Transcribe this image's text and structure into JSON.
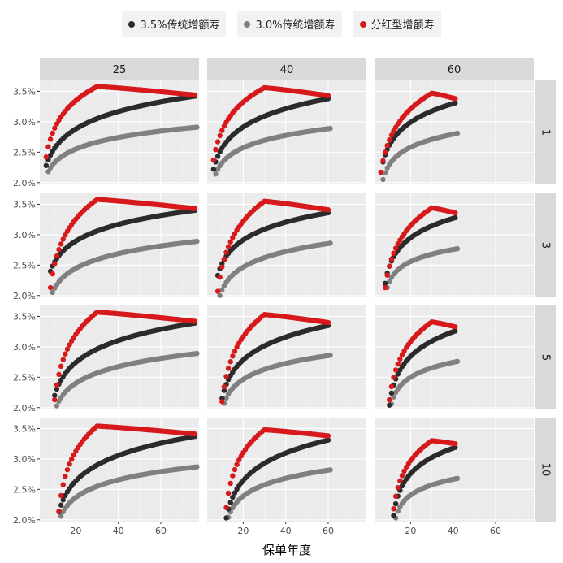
{
  "chart_data": {
    "type": "scatter",
    "title": "",
    "xlabel": "保单年度",
    "ylabel": "",
    "legend": {
      "placement": "top",
      "items": [
        {
          "name": "3.5%传统增额寿",
          "color": "#2b2b2b"
        },
        {
          "name": "3.0%传统增额寿",
          "color": "#808080"
        },
        {
          "name": "分红型增额寿",
          "color": "#d7191c"
        }
      ]
    },
    "facets": {
      "col_labels": [
        "25",
        "40",
        "60"
      ],
      "row_labels": [
        "1",
        "3",
        "5",
        "10"
      ]
    },
    "x_ticks": [
      20,
      40,
      60
    ],
    "x_range": [
      3,
      78
    ],
    "y_ticks": [
      "2.0%",
      "2.5%",
      "3.0%",
      "3.5%"
    ],
    "y_tick_values": [
      2.0,
      2.5,
      3.0,
      3.5
    ],
    "y_range": [
      1.97,
      3.68
    ],
    "series_models": {
      "description_values": "Each panel: three series. x from start to end year; values in %.",
      "panels": [
        {
          "row": "1",
          "col": "25",
          "start": 6,
          "end": 76,
          "s35": [
            2.28,
            3.42
          ],
          "s30": [
            2.18,
            2.91
          ],
          "red": [
            2.42,
            3.58,
            3.44
          ]
        },
        {
          "row": "1",
          "col": "40",
          "start": 6,
          "end": 60,
          "s35": [
            2.22,
            3.38
          ],
          "s30": [
            2.14,
            2.89
          ],
          "red": [
            2.37,
            3.56,
            3.43
          ]
        },
        {
          "row": "1",
          "col": "60",
          "start": 6,
          "end": 41,
          "s35": [
            2.17,
            3.31
          ],
          "s30": [
            2.05,
            2.81
          ],
          "red": [
            2.17,
            3.47,
            3.38
          ]
        },
        {
          "row": "3",
          "col": "25",
          "start": 8,
          "end": 76,
          "s35": [
            2.4,
            3.4
          ],
          "s30": [
            2.05,
            2.89
          ],
          "red": [
            2.13,
            3.58,
            3.43
          ]
        },
        {
          "row": "3",
          "col": "40",
          "start": 8,
          "end": 60,
          "s35": [
            2.33,
            3.36
          ],
          "s30": [
            2.0,
            2.86
          ],
          "red": [
            2.07,
            3.55,
            3.41
          ]
        },
        {
          "row": "3",
          "col": "60",
          "start": 8,
          "end": 41,
          "s35": [
            2.2,
            3.28
          ],
          "s30": [
            2.13,
            2.77
          ],
          "red": [
            2.13,
            3.44,
            3.36
          ]
        },
        {
          "row": "5",
          "col": "25",
          "start": 10,
          "end": 76,
          "s35": [
            2.2,
            3.39
          ],
          "s30": [
            2.03,
            2.89
          ],
          "red": [
            2.13,
            3.57,
            3.42
          ]
        },
        {
          "row": "5",
          "col": "40",
          "start": 10,
          "end": 60,
          "s35": [
            2.15,
            3.35
          ],
          "s30": [
            2.07,
            2.86
          ],
          "red": [
            2.1,
            3.53,
            3.4
          ]
        },
        {
          "row": "5",
          "col": "60",
          "start": 10,
          "end": 41,
          "s35": [
            2.04,
            3.26
          ],
          "s30": [
            2.06,
            2.76
          ],
          "red": [
            2.13,
            3.41,
            3.33
          ]
        },
        {
          "row": "10",
          "col": "25",
          "start": 12,
          "end": 76,
          "s35": [
            2.13,
            3.37
          ],
          "s30": [
            2.06,
            2.87
          ],
          "red": [
            2.14,
            3.54,
            3.41
          ]
        },
        {
          "row": "10",
          "col": "40",
          "start": 12,
          "end": 60,
          "s35": [
            2.03,
            3.31
          ],
          "s30": [
            2.04,
            2.82
          ],
          "red": [
            2.2,
            3.48,
            3.38
          ]
        },
        {
          "row": "10",
          "col": "60",
          "start": 12,
          "end": 41,
          "s35": [
            2.07,
            3.19
          ],
          "s30": [
            2.03,
            2.68
          ],
          "red": [
            2.18,
            3.3,
            3.25
          ]
        }
      ]
    }
  }
}
